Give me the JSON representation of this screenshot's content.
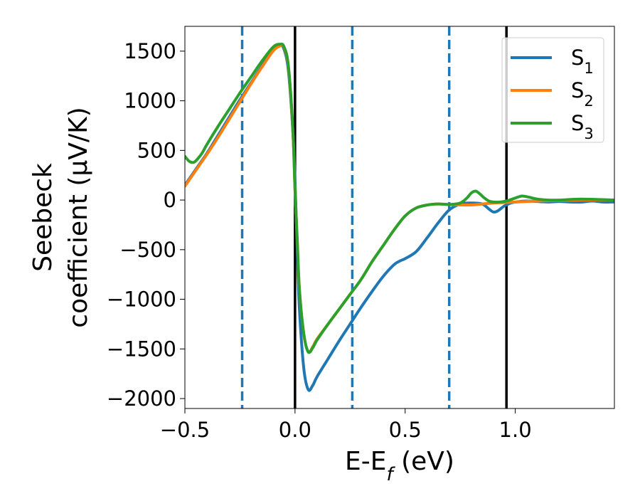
{
  "chart_data": {
    "type": "line",
    "title": "",
    "xlabel": "E-E_f (eV)",
    "ylabel": {
      "line1": "Seebeck",
      "line2": "coefficient  (μV/K)"
    },
    "xlim": [
      -0.5,
      1.45
    ],
    "ylim": [
      -2100,
      1750
    ],
    "xticks": [
      -0.5,
      0.0,
      0.5,
      1.0
    ],
    "xtick_labels": [
      "−0.5",
      "0.0",
      "0.5",
      "1.0"
    ],
    "yticks": [
      1500,
      1000,
      500,
      0,
      -500,
      -1000,
      -1500,
      -2000
    ],
    "ytick_labels": [
      "1500",
      "1000",
      "500",
      "0",
      "−500",
      "−1000",
      "−1500",
      "−2000"
    ],
    "grid": false,
    "legend_position": "top-right",
    "vertical_lines": {
      "solid": {
        "color": "#000000",
        "x": [
          0.0,
          0.96
        ]
      },
      "dashed": {
        "color": "#1f77b4",
        "x": [
          -0.24,
          0.26,
          0.7
        ]
      }
    },
    "series": [
      {
        "name": "S",
        "subscript": "1",
        "color": "#1f77b4",
        "x": [
          -0.5,
          -0.45,
          -0.4,
          -0.35,
          -0.3,
          -0.25,
          -0.2,
          -0.15,
          -0.1,
          -0.07,
          -0.05,
          -0.03,
          -0.01,
          0.0,
          0.01,
          0.02,
          0.04,
          0.06,
          0.08,
          0.1,
          0.15,
          0.2,
          0.25,
          0.3,
          0.35,
          0.4,
          0.45,
          0.48,
          0.5,
          0.55,
          0.6,
          0.65,
          0.7,
          0.75,
          0.8,
          0.85,
          0.88,
          0.9,
          0.92,
          0.95,
          0.98,
          1.0,
          1.05,
          1.1,
          1.15,
          1.2,
          1.25,
          1.3,
          1.35,
          1.4,
          1.45
        ],
        "y": [
          150,
          310,
          470,
          650,
          830,
          1010,
          1180,
          1350,
          1510,
          1560,
          1520,
          1300,
          700,
          200,
          -500,
          -1100,
          -1700,
          -1910,
          -1870,
          -1780,
          -1600,
          -1420,
          -1250,
          -1080,
          -920,
          -770,
          -650,
          -610,
          -590,
          -520,
          -380,
          -230,
          -100,
          -40,
          -30,
          -40,
          -90,
          -120,
          -110,
          -60,
          -30,
          -20,
          -10,
          -15,
          -20,
          -15,
          -20,
          -20,
          -10,
          -20,
          -20
        ]
      },
      {
        "name": "S",
        "subscript": "2",
        "color": "#ff7f0e",
        "x": [
          -0.5,
          -0.45,
          -0.4,
          -0.35,
          -0.3,
          -0.25,
          -0.2,
          -0.15,
          -0.1,
          -0.07,
          -0.05,
          -0.03,
          -0.01,
          0.0,
          0.01,
          0.02,
          0.04,
          0.06,
          0.08,
          0.1,
          0.15,
          0.2,
          0.25,
          0.3,
          0.35,
          0.4,
          0.45,
          0.5,
          0.55,
          0.6,
          0.65,
          0.7,
          0.75,
          0.8,
          0.85,
          0.9,
          0.95,
          1.0,
          1.1,
          1.2,
          1.3,
          1.45
        ],
        "y": [
          140,
          300,
          460,
          630,
          810,
          990,
          1170,
          1340,
          1500,
          1550,
          1540,
          1330,
          700,
          100,
          -400,
          -900,
          -1350,
          -1530,
          -1480,
          -1400,
          -1250,
          -1100,
          -950,
          -800,
          -620,
          -460,
          -300,
          -160,
          -80,
          -50,
          -40,
          -45,
          -50,
          -50,
          -40,
          -30,
          -25,
          -20,
          -10,
          -5,
          0,
          0
        ]
      },
      {
        "name": "S",
        "subscript": "3",
        "color": "#2ca02c",
        "x": [
          -0.5,
          -0.48,
          -0.46,
          -0.44,
          -0.42,
          -0.4,
          -0.35,
          -0.3,
          -0.25,
          -0.2,
          -0.15,
          -0.1,
          -0.07,
          -0.05,
          -0.03,
          -0.01,
          0.0,
          0.01,
          0.02,
          0.04,
          0.06,
          0.08,
          0.1,
          0.15,
          0.2,
          0.25,
          0.3,
          0.35,
          0.4,
          0.45,
          0.5,
          0.55,
          0.6,
          0.65,
          0.7,
          0.75,
          0.78,
          0.8,
          0.82,
          0.84,
          0.86,
          0.88,
          0.9,
          0.93,
          0.96,
          1.0,
          1.03,
          1.06,
          1.1,
          1.15,
          1.2,
          1.3,
          1.45
        ],
        "y": [
          440,
          390,
          380,
          420,
          480,
          560,
          740,
          910,
          1080,
          1240,
          1400,
          1540,
          1570,
          1545,
          1350,
          720,
          100,
          -400,
          -900,
          -1350,
          -1530,
          -1490,
          -1410,
          -1250,
          -1100,
          -950,
          -800,
          -620,
          -460,
          -300,
          -160,
          -80,
          -50,
          -40,
          -45,
          -30,
          20,
          70,
          90,
          60,
          20,
          -10,
          -20,
          -20,
          -10,
          20,
          40,
          30,
          10,
          0,
          0,
          10,
          0
        ]
      }
    ]
  }
}
